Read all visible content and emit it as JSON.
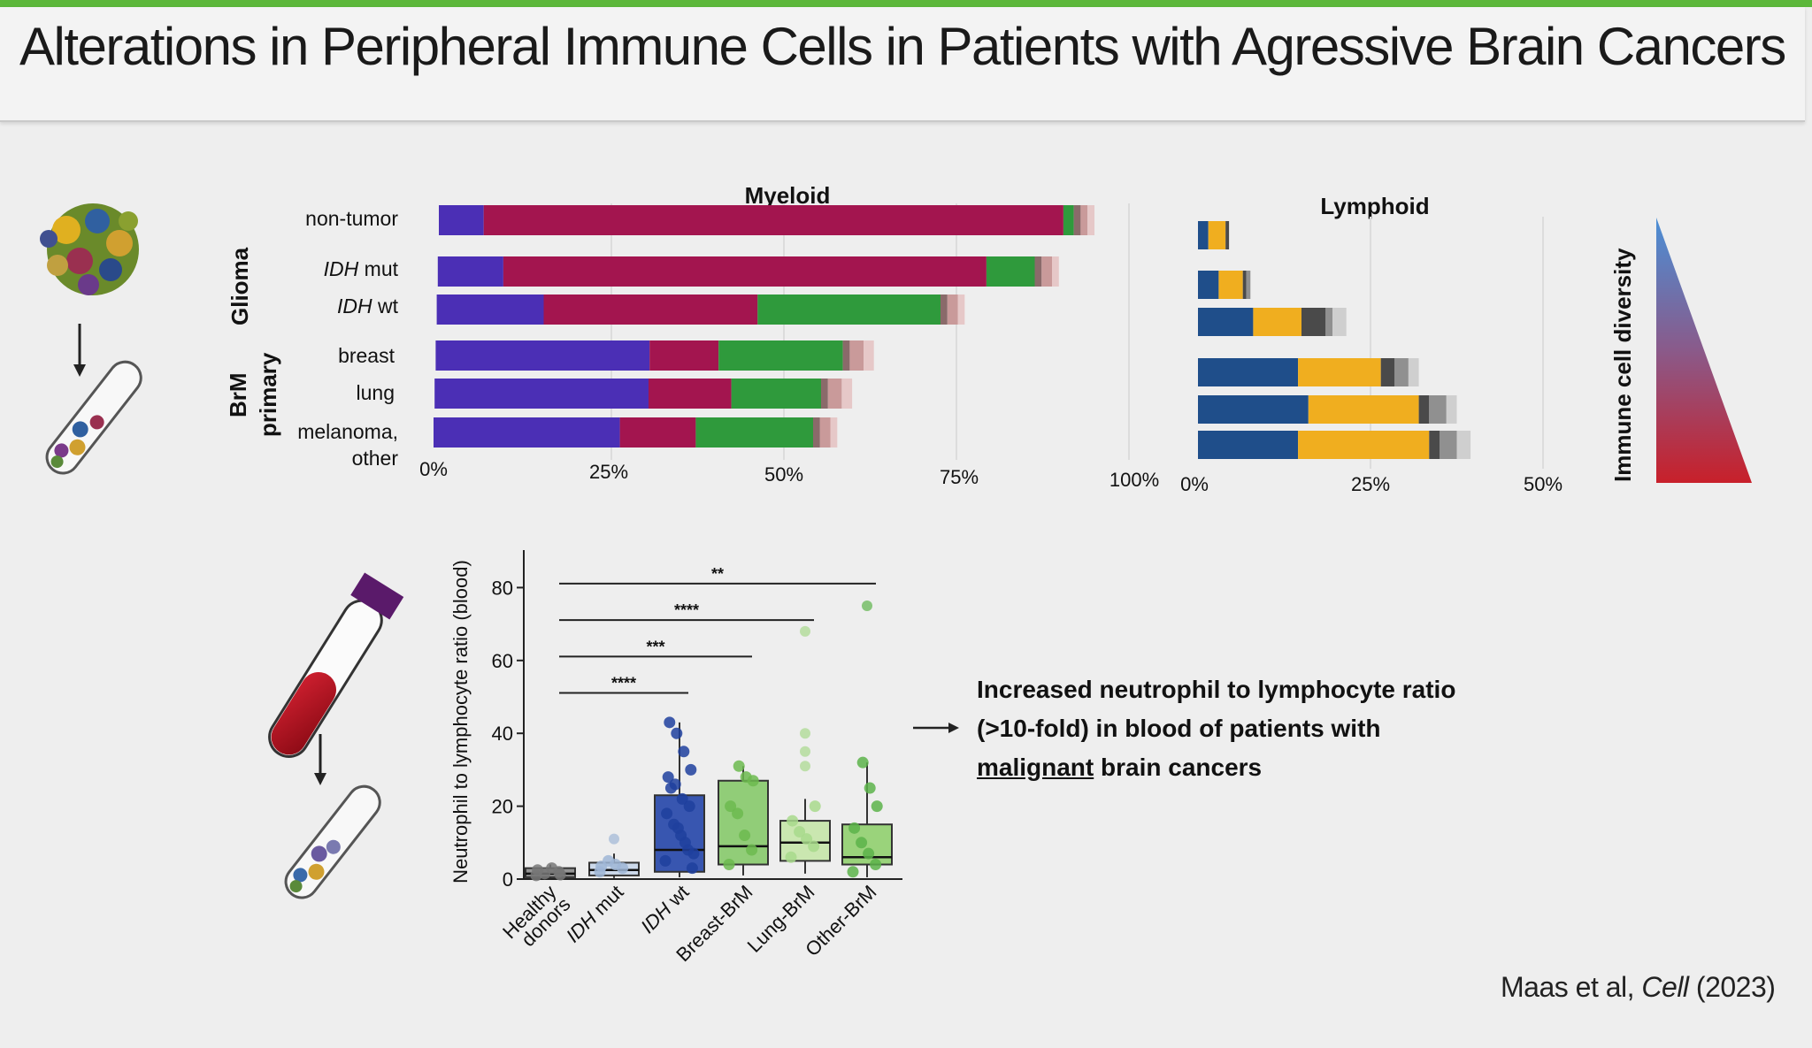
{
  "title": "Alterations in Peripheral Immune Cells in Patients with Agressive Brain Cancers",
  "citation": {
    "authors": "Maas et al, ",
    "journal": "Cell",
    "year": " (2023)"
  },
  "annotation": {
    "line1": "Increased neutrophil to lymphocyte ratio",
    "line2": "(>10-fold) in blood of patients with",
    "line3_underlined": "malignant",
    "line3_rest": " brain cancers"
  },
  "diversity_label": "Immune cell diversity",
  "group_labels": {
    "glioma": "Glioma",
    "brm": "BrM",
    "primary": "primary"
  },
  "categories": [
    {
      "label": "non-tumor",
      "italic_prefix": "",
      "group": "Glioma"
    },
    {
      "label": " mut",
      "italic_prefix": "IDH",
      "group": "Glioma"
    },
    {
      "label": " wt",
      "italic_prefix": "IDH",
      "group": "Glioma"
    },
    {
      "label": "breast",
      "italic_prefix": "",
      "group": "BrM"
    },
    {
      "label": "lung",
      "italic_prefix": "",
      "group": "BrM"
    },
    {
      "label": "melanoma,",
      "label2": "other",
      "italic_prefix": "",
      "group": "BrM"
    }
  ],
  "colors": {
    "myeloid": [
      "#4b2fb5",
      "#a3154f",
      "#2f9a3c",
      "#8a6a6a",
      "#c99a9a",
      "#e6c8c8"
    ],
    "lymphoid": [
      "#1f4e8a",
      "#f0ae1f",
      "#4a4a4a",
      "#909090",
      "#cfcfcf"
    ],
    "box_fills": [
      "#8a8a8a",
      "#c9d7ea",
      "#2445a8",
      "#86c96a",
      "#c5e6a8",
      "#90cf6e"
    ],
    "box_points": [
      "#777777",
      "#9fb6d6",
      "#1f3f9e",
      "#6cba4f",
      "#a8d98c",
      "#5cb34a"
    ]
  },
  "chart_data": [
    {
      "type": "bar",
      "orientation": "horizontal",
      "stacked": true,
      "title": "Myeloid",
      "categories": [
        "non-tumor",
        "IDH mut",
        "IDH wt",
        "breast",
        "lung",
        "melanoma, other"
      ],
      "xlim": [
        0,
        100
      ],
      "x_ticks": [
        "0%",
        "25%",
        "50%",
        "75%",
        "100%"
      ],
      "segments": [
        [
          6.5,
          84,
          1.5,
          1,
          1,
          1
        ],
        [
          9.5,
          70,
          7,
          1,
          1.5,
          1
        ],
        [
          15.5,
          31,
          26.5,
          1,
          1.5,
          1
        ],
        [
          31,
          10,
          18,
          1,
          2,
          1.5
        ],
        [
          31,
          12,
          13,
          1,
          2,
          1.5
        ],
        [
          27,
          11,
          17,
          1,
          1.5,
          1
        ]
      ]
    },
    {
      "type": "bar",
      "orientation": "horizontal",
      "stacked": true,
      "title": "Lymphoid",
      "categories": [
        "non-tumor",
        "IDH mut",
        "IDH wt",
        "breast",
        "lung",
        "melanoma, other"
      ],
      "xlim": [
        0,
        50
      ],
      "x_ticks": [
        "0%",
        "25%",
        "50%"
      ],
      "segments": [
        [
          1.5,
          2.5,
          0.5,
          0,
          0
        ],
        [
          3,
          3.5,
          0.5,
          0.6,
          0
        ],
        [
          8,
          7,
          3.5,
          1,
          2
        ],
        [
          14.5,
          12,
          2,
          2,
          1.5
        ],
        [
          16,
          16,
          1.5,
          2.5,
          1.5
        ],
        [
          14.5,
          19,
          1.5,
          2.5,
          2
        ]
      ]
    },
    {
      "type": "box",
      "ylabel": "Neutrophil to lymphocyte ratio (blood)",
      "ylim": [
        0,
        90
      ],
      "y_ticks": [
        0,
        20,
        40,
        60,
        80
      ],
      "categories": [
        "Healthy donors",
        "IDH mut",
        "IDH wt",
        "Breast-BrM",
        "Lung-BrM",
        "Other-BrM"
      ],
      "italic_prefixes": [
        "",
        "IDH",
        "IDH",
        "",
        "",
        ""
      ],
      "tick_text": [
        "Healthy",
        "donors",
        " mut",
        " wt",
        "Breast-BrM",
        "Lung-BrM",
        "Other-BrM"
      ],
      "boxes": [
        {
          "q1": 0.5,
          "median": 1.5,
          "q3": 3,
          "whisker_low": 0.2,
          "whisker_high": 4
        },
        {
          "q1": 1,
          "median": 2.5,
          "q3": 4.5,
          "whisker_low": 0.3,
          "whisker_high": 7
        },
        {
          "q1": 2,
          "median": 8,
          "q3": 23,
          "whisker_low": 0.5,
          "whisker_high": 43
        },
        {
          "q1": 4,
          "median": 9,
          "q3": 27,
          "whisker_low": 1,
          "whisker_high": 31
        },
        {
          "q1": 5,
          "median": 10,
          "q3": 16,
          "whisker_low": 1.5,
          "whisker_high": 22
        },
        {
          "q1": 4,
          "median": 6,
          "q3": 15,
          "whisker_low": 0.5,
          "whisker_high": 32
        }
      ],
      "outliers": [
        [],
        [
          11
        ],
        [],
        [],
        [
          40,
          35,
          31,
          68
        ],
        [
          75
        ]
      ],
      "points": [
        [
          1,
          2,
          3,
          1.5,
          2.5,
          1.2
        ],
        [
          2,
          3,
          4,
          5,
          3.5
        ],
        [
          5,
          8,
          12,
          15,
          18,
          20,
          22,
          26,
          28,
          30,
          35,
          40,
          43,
          3,
          10,
          14,
          25,
          7
        ],
        [
          4,
          8,
          12,
          18,
          20,
          27,
          28,
          31
        ],
        [
          6,
          9,
          11,
          13,
          16,
          20
        ],
        [
          2,
          4,
          7,
          10,
          14,
          20,
          25,
          32
        ]
      ],
      "significance": [
        {
          "from": 0,
          "to": 5,
          "label": "**",
          "y": 84
        },
        {
          "from": 0,
          "to": 4,
          "label": "****",
          "y": 74
        },
        {
          "from": 0,
          "to": 3,
          "label": "***",
          "y": 64
        },
        {
          "from": 0,
          "to": 2,
          "label": "****",
          "y": 54
        }
      ]
    }
  ]
}
